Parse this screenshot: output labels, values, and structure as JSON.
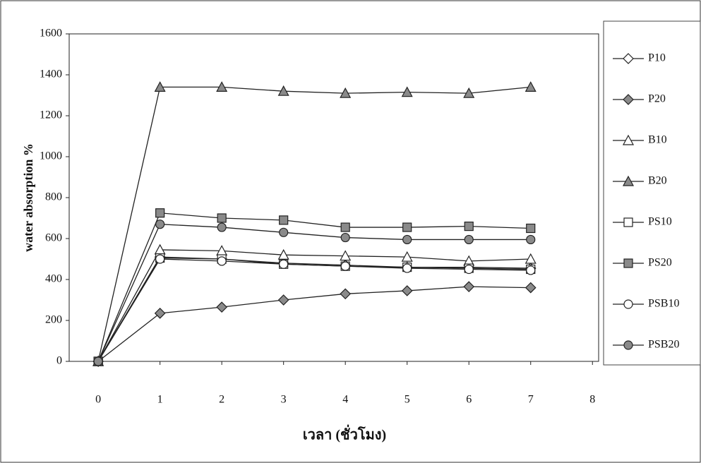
{
  "chart_data": {
    "type": "line",
    "y_label": "water absorption %",
    "x_label": "เวลา (ชั่วโมง)",
    "x": [
      0,
      1,
      2,
      3,
      4,
      5,
      6,
      7
    ],
    "xlim": [
      -0.47,
      8.1
    ],
    "xticks": [
      0,
      1,
      2,
      3,
      4,
      5,
      6,
      7,
      8
    ],
    "ylim": [
      0,
      1600
    ],
    "yticks": [
      0,
      200,
      400,
      600,
      800,
      1000,
      1200,
      1400,
      1600
    ],
    "legend": "right",
    "series": [
      {
        "name": "P10",
        "marker": "diamond",
        "color": "#ffffff",
        "values": [
          0,
          510,
          500,
          480,
          470,
          460,
          460,
          455
        ]
      },
      {
        "name": "P20",
        "marker": "diamond",
        "color": "#8a8a8a",
        "values": [
          0,
          235,
          265,
          300,
          330,
          345,
          365,
          360
        ]
      },
      {
        "name": "B10",
        "marker": "triangle",
        "color": "#ffffff",
        "values": [
          0,
          545,
          540,
          520,
          515,
          510,
          490,
          500
        ]
      },
      {
        "name": "B20",
        "marker": "triangle",
        "color": "#8a8a8a",
        "values": [
          0,
          1340,
          1340,
          1320,
          1310,
          1315,
          1310,
          1340
        ]
      },
      {
        "name": "PS10",
        "marker": "square",
        "color": "#ffffff",
        "values": [
          0,
          505,
          500,
          475,
          465,
          460,
          455,
          450
        ]
      },
      {
        "name": "PS20",
        "marker": "square",
        "color": "#8a8a8a",
        "values": [
          0,
          725,
          700,
          690,
          655,
          655,
          660,
          650
        ]
      },
      {
        "name": "PSB10",
        "marker": "circle",
        "color": "#ffffff",
        "values": [
          0,
          500,
          490,
          475,
          465,
          455,
          450,
          445
        ]
      },
      {
        "name": "PSB20",
        "marker": "circle",
        "color": "#8a8a8a",
        "values": [
          0,
          670,
          655,
          630,
          605,
          595,
          595,
          595
        ]
      }
    ]
  }
}
